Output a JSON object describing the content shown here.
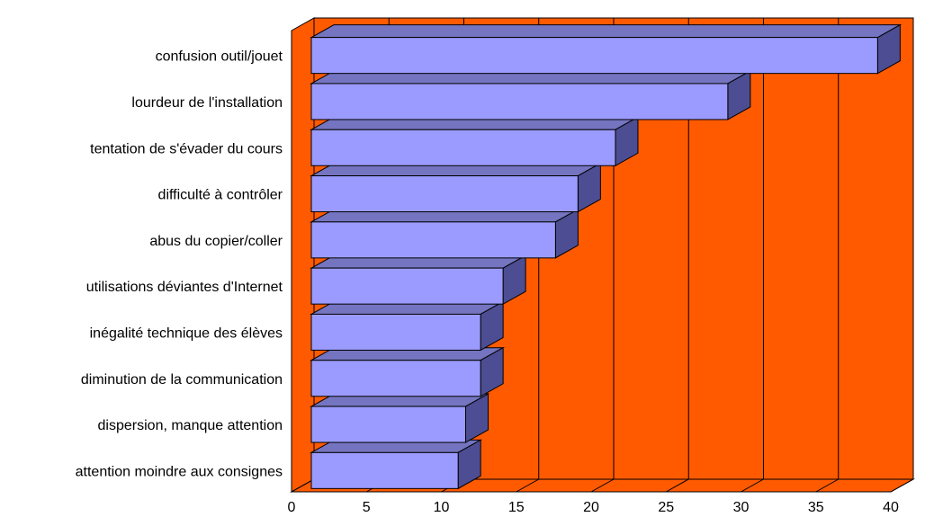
{
  "chart_data": {
    "type": "bar",
    "orientation": "horizontal",
    "three_d": true,
    "title": "",
    "xlabel": "",
    "ylabel": "",
    "categories": [
      "confusion outil/jouet",
      "lourdeur de l'installation",
      "tentation de s'évader du cours",
      "difficulté à contrôler",
      "abus du copier/coller",
      "utilisations déviantes d'Internet",
      "inégalité technique des élèves",
      "diminution de la communication",
      "dispersion, manque attention",
      "attention moindre aux consignes"
    ],
    "values": [
      39,
      29,
      21.5,
      19,
      17.5,
      14,
      12.5,
      12.5,
      11.5,
      11
    ],
    "xlim": [
      0,
      40
    ],
    "xticks": [
      0,
      5,
      10,
      15,
      20,
      25,
      30,
      35,
      40
    ],
    "grid": true,
    "legend": "none",
    "colors": {
      "wall": "#ff5a00",
      "floor": "#ff5a00",
      "bar_front": "#9b9bff",
      "bar_top": "#7474c0",
      "bar_side": "#4d4d93",
      "edge": "#000000"
    }
  }
}
